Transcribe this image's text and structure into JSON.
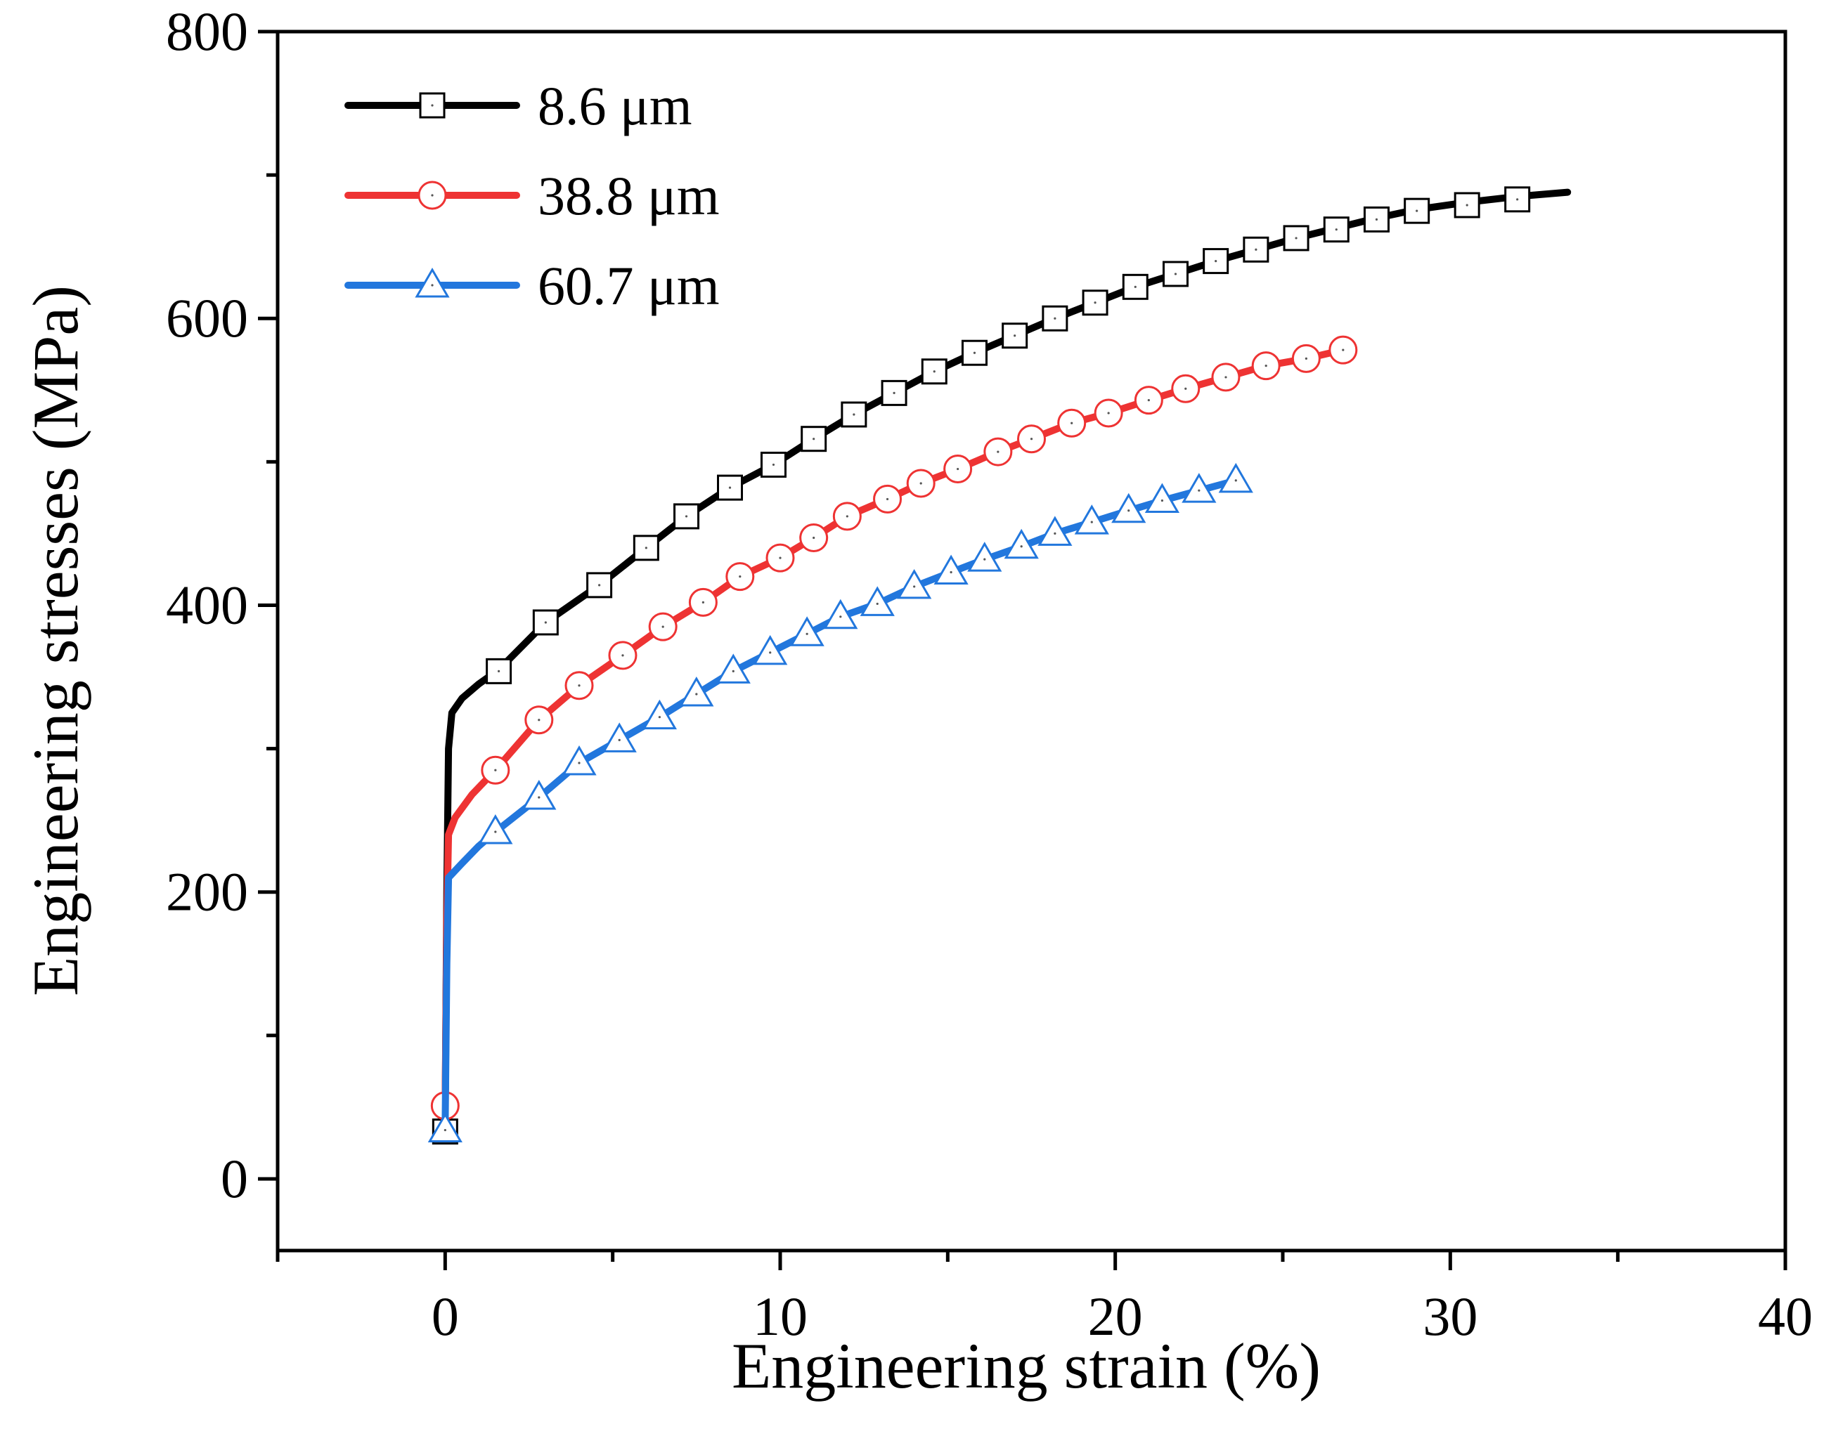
{
  "chart_data": {
    "type": "line",
    "title": "",
    "xlabel": "Engineering strain (%)",
    "ylabel": "Engineering stresses (MPa)",
    "xlim": [
      -5,
      40
    ],
    "ylim": [
      -50,
      800
    ],
    "xticks": [
      0,
      10,
      20,
      30,
      40
    ],
    "yticks": [
      0,
      200,
      400,
      600,
      800
    ],
    "xticks_minor": [
      -5,
      5,
      15,
      25,
      35
    ],
    "yticks_minor": [
      100,
      300,
      500,
      700
    ],
    "tick_labels_x": [
      "0",
      "10",
      "20",
      "30",
      "40"
    ],
    "tick_labels_y": [
      "0",
      "200",
      "400",
      "600",
      "800"
    ],
    "legend_position": "top-left",
    "grid": false,
    "series": [
      {
        "name": "8.6 μm",
        "color": "#000000",
        "marker": "square",
        "curve": [
          [
            0,
            35
          ],
          [
            0.05,
            200
          ],
          [
            0.1,
            300
          ],
          [
            0.2,
            325
          ],
          [
            0.5,
            335
          ],
          [
            1,
            345
          ],
          [
            1.6,
            355
          ],
          [
            3,
            388
          ],
          [
            4.6,
            414
          ],
          [
            6,
            440
          ],
          [
            7.2,
            462
          ],
          [
            8.5,
            482
          ],
          [
            9.8,
            498
          ],
          [
            11,
            516
          ],
          [
            12.2,
            533
          ],
          [
            13.4,
            548
          ],
          [
            14.6,
            563
          ],
          [
            15.8,
            576
          ],
          [
            17,
            588
          ],
          [
            18.2,
            600
          ],
          [
            19.4,
            611
          ],
          [
            20.6,
            622
          ],
          [
            21.8,
            631
          ],
          [
            23,
            640
          ],
          [
            24.2,
            648
          ],
          [
            25.4,
            656
          ],
          [
            26.6,
            663
          ],
          [
            27.8,
            670
          ],
          [
            29,
            676
          ],
          [
            30.5,
            681
          ],
          [
            32,
            685
          ],
          [
            33.5,
            688
          ]
        ],
        "markers": [
          [
            0,
            33
          ],
          [
            1.6,
            354
          ],
          [
            3,
            388
          ],
          [
            4.6,
            414
          ],
          [
            6,
            440
          ],
          [
            7.2,
            462
          ],
          [
            8.5,
            482
          ],
          [
            9.8,
            498
          ],
          [
            11,
            516
          ],
          [
            12.2,
            533
          ],
          [
            13.4,
            548
          ],
          [
            14.6,
            563
          ],
          [
            15.8,
            576
          ],
          [
            17,
            588
          ],
          [
            18.2,
            600
          ],
          [
            19.4,
            611
          ],
          [
            20.6,
            622
          ],
          [
            21.8,
            631
          ],
          [
            23,
            640
          ],
          [
            24.2,
            648
          ],
          [
            25.4,
            656
          ],
          [
            26.6,
            662
          ],
          [
            27.8,
            669
          ],
          [
            29,
            675
          ],
          [
            30.5,
            679
          ],
          [
            32,
            683
          ]
        ]
      },
      {
        "name": "38.8 μm",
        "color": "#ee3333",
        "marker": "circle",
        "curve": [
          [
            0,
            50
          ],
          [
            0.05,
            180
          ],
          [
            0.1,
            240
          ],
          [
            0.3,
            252
          ],
          [
            0.8,
            268
          ],
          [
            1.5,
            285
          ],
          [
            2.8,
            320
          ],
          [
            4,
            344
          ],
          [
            5.3,
            365
          ],
          [
            6.5,
            385
          ],
          [
            7.7,
            402
          ],
          [
            8.8,
            420
          ],
          [
            10,
            433
          ],
          [
            11,
            447
          ],
          [
            12,
            462
          ],
          [
            13.2,
            474
          ],
          [
            14.2,
            485
          ],
          [
            15.3,
            495
          ],
          [
            16.5,
            507
          ],
          [
            17.5,
            516
          ],
          [
            18.7,
            527
          ],
          [
            19.8,
            534
          ],
          [
            21,
            543
          ],
          [
            22.1,
            551
          ],
          [
            23.3,
            559
          ],
          [
            24.5,
            567
          ],
          [
            25.7,
            572
          ],
          [
            26.8,
            578
          ]
        ],
        "markers": [
          [
            0,
            51
          ],
          [
            1.5,
            285
          ],
          [
            2.8,
            320
          ],
          [
            4,
            344
          ],
          [
            5.3,
            365
          ],
          [
            6.5,
            385
          ],
          [
            7.7,
            402
          ],
          [
            8.8,
            420
          ],
          [
            10,
            433
          ],
          [
            11,
            447
          ],
          [
            12,
            462
          ],
          [
            13.2,
            474
          ],
          [
            14.2,
            485
          ],
          [
            15.3,
            495
          ],
          [
            16.5,
            507
          ],
          [
            17.5,
            516
          ],
          [
            18.7,
            527
          ],
          [
            19.8,
            534
          ],
          [
            21,
            543
          ],
          [
            22.1,
            551
          ],
          [
            23.3,
            559
          ],
          [
            24.5,
            567
          ],
          [
            25.7,
            572
          ],
          [
            26.8,
            578
          ]
        ]
      },
      {
        "name": "60.7 μm",
        "color": "#2277dd",
        "marker": "triangle",
        "curve": [
          [
            0,
            35
          ],
          [
            0.05,
            150
          ],
          [
            0.1,
            210
          ],
          [
            0.5,
            220
          ],
          [
            1,
            232
          ],
          [
            1.5,
            242
          ],
          [
            2.8,
            266
          ],
          [
            4,
            290
          ],
          [
            5.2,
            306
          ],
          [
            6.4,
            322
          ],
          [
            7.5,
            338
          ],
          [
            8.6,
            354
          ],
          [
            9.7,
            367
          ],
          [
            10.8,
            380
          ],
          [
            11.8,
            392
          ],
          [
            12.9,
            401
          ],
          [
            14,
            413
          ],
          [
            15.1,
            423
          ],
          [
            16.1,
            432
          ],
          [
            17.2,
            441
          ],
          [
            18.2,
            450
          ],
          [
            19.3,
            458
          ],
          [
            20.4,
            466
          ],
          [
            21.4,
            473
          ],
          [
            22.5,
            480
          ],
          [
            23.6,
            487
          ]
        ],
        "markers": [
          [
            0,
            34
          ],
          [
            1.5,
            242
          ],
          [
            2.8,
            266
          ],
          [
            4,
            290
          ],
          [
            5.2,
            306
          ],
          [
            6.4,
            322
          ],
          [
            7.5,
            338
          ],
          [
            8.6,
            354
          ],
          [
            9.7,
            367
          ],
          [
            10.8,
            380
          ],
          [
            11.8,
            392
          ],
          [
            12.9,
            401
          ],
          [
            14,
            413
          ],
          [
            15.1,
            423
          ],
          [
            16.1,
            432
          ],
          [
            17.2,
            441
          ],
          [
            18.2,
            450
          ],
          [
            19.3,
            458
          ],
          [
            20.4,
            466
          ],
          [
            21.4,
            473
          ],
          [
            22.5,
            480
          ],
          [
            23.6,
            487
          ]
        ]
      }
    ]
  }
}
